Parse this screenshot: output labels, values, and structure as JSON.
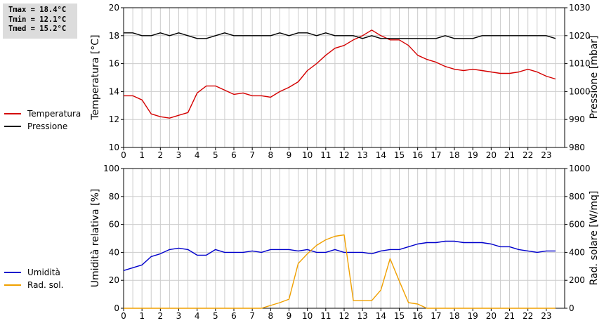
{
  "stats": {
    "tmax": "Tmax = 18.4°C",
    "tmin": "Tmin = 12.1°C",
    "tmed": "Tmed = 15.2°C"
  },
  "colors": {
    "temperature": "#d40000",
    "pressure": "#000000",
    "humidity": "#0000cc",
    "radiation": "#f0a000",
    "grid": "#cccccc"
  },
  "legend_top": {
    "temperature": "Temperatura",
    "pressure": "Pressione"
  },
  "legend_bottom": {
    "humidity": "Umidità",
    "radiation": "Rad. sol."
  },
  "chart_data": [
    {
      "type": "line",
      "ylabel": "Temperatura [°C]",
      "y2label": "Pressione [mbar]",
      "xlim": [
        0,
        24
      ],
      "ylim": [
        10,
        20
      ],
      "y2lim": [
        980,
        1030
      ],
      "x_ticks": [
        "0",
        "1",
        "2",
        "3",
        "4",
        "5",
        "6",
        "7",
        "8",
        "9",
        "10",
        "11",
        "12",
        "13",
        "14",
        "15",
        "16",
        "17",
        "18",
        "19",
        "20",
        "21",
        "22",
        "23"
      ],
      "y_ticks": [
        "10",
        "12",
        "14",
        "16",
        "18",
        "20"
      ],
      "y2_ticks": [
        "980",
        "990",
        "1000",
        "1010",
        "1020",
        "1030"
      ],
      "grid": true,
      "series": [
        {
          "name": "Temperatura",
          "axis": "left",
          "x": [
            0,
            0.5,
            1,
            1.5,
            2,
            2.5,
            3,
            3.5,
            4,
            4.5,
            5,
            5.5,
            6,
            6.5,
            7,
            7.5,
            8,
            8.5,
            9,
            9.5,
            10,
            10.5,
            11,
            11.5,
            12,
            12.5,
            13,
            13.5,
            14,
            14.5,
            15,
            15.5,
            16,
            16.5,
            17,
            17.5,
            18,
            18.5,
            19,
            19.5,
            20,
            20.5,
            21,
            21.5,
            22,
            22.5,
            23,
            23.5
          ],
          "values": [
            13.7,
            13.7,
            13.4,
            12.4,
            12.2,
            12.1,
            12.3,
            12.5,
            13.9,
            14.4,
            14.4,
            14.1,
            13.8,
            13.9,
            13.7,
            13.7,
            13.6,
            14.0,
            14.3,
            14.7,
            15.5,
            16.0,
            16.6,
            17.1,
            17.3,
            17.7,
            18.0,
            18.4,
            18.0,
            17.7,
            17.7,
            17.3,
            16.6,
            16.3,
            16.1,
            15.8,
            15.6,
            15.5,
            15.6,
            15.5,
            15.4,
            15.3,
            15.3,
            15.4,
            15.6,
            15.4,
            15.1,
            14.9
          ]
        },
        {
          "name": "Pressione",
          "axis": "right",
          "x": [
            0,
            0.5,
            1,
            1.5,
            2,
            2.5,
            3,
            3.5,
            4,
            4.5,
            5,
            5.5,
            6,
            6.5,
            7,
            7.5,
            8,
            8.5,
            9,
            9.5,
            10,
            10.5,
            11,
            11.5,
            12,
            12.5,
            13,
            13.5,
            14,
            14.5,
            15,
            15.5,
            16,
            16.5,
            17,
            17.5,
            18,
            18.5,
            19,
            19.5,
            20,
            20.5,
            21,
            21.5,
            22,
            22.5,
            23,
            23.5
          ],
          "values": [
            1021,
            1021,
            1020,
            1020,
            1021,
            1020,
            1021,
            1020,
            1019,
            1019,
            1020,
            1021,
            1020,
            1020,
            1020,
            1020,
            1020,
            1021,
            1020,
            1021,
            1021,
            1020,
            1021,
            1020,
            1020,
            1020,
            1019,
            1020,
            1019,
            1019,
            1019,
            1019,
            1019,
            1019,
            1019,
            1020,
            1019,
            1019,
            1019,
            1020,
            1020,
            1020,
            1020,
            1020,
            1020,
            1020,
            1020,
            1019
          ]
        }
      ]
    },
    {
      "type": "line",
      "ylabel": "Umidità relativa [%]",
      "y2label": "Rad. solare [W/mq]",
      "xlim": [
        0,
        24
      ],
      "ylim": [
        0,
        100
      ],
      "y2lim": [
        0,
        1000
      ],
      "x_ticks": [
        "0",
        "1",
        "2",
        "3",
        "4",
        "5",
        "6",
        "7",
        "8",
        "9",
        "10",
        "11",
        "12",
        "13",
        "14",
        "15",
        "16",
        "17",
        "18",
        "19",
        "20",
        "21",
        "22",
        "23"
      ],
      "y_ticks": [
        "0",
        "20",
        "40",
        "60",
        "80",
        "100"
      ],
      "y2_ticks": [
        "0",
        "200",
        "400",
        "600",
        "800",
        "1000"
      ],
      "grid": true,
      "series": [
        {
          "name": "Umidità",
          "axis": "left",
          "x": [
            0,
            0.5,
            1,
            1.5,
            2,
            2.5,
            3,
            3.5,
            4,
            4.5,
            5,
            5.5,
            6,
            6.5,
            7,
            7.5,
            8,
            8.5,
            9,
            9.5,
            10,
            10.5,
            11,
            11.5,
            12,
            12.5,
            13,
            13.5,
            14,
            14.5,
            15,
            15.5,
            16,
            16.5,
            17,
            17.5,
            18,
            18.5,
            19,
            19.5,
            20,
            20.5,
            21,
            21.5,
            22,
            22.5,
            23,
            23.5
          ],
          "values": [
            27,
            29,
            31,
            37,
            39,
            42,
            43,
            42,
            38,
            38,
            42,
            40,
            40,
            40,
            41,
            40,
            42,
            42,
            42,
            41,
            42,
            40,
            40,
            42,
            40,
            40,
            40,
            39,
            41,
            42,
            42,
            44,
            46,
            47,
            47,
            48,
            48,
            47,
            47,
            47,
            46,
            44,
            44,
            42,
            41,
            40,
            41,
            41
          ]
        },
        {
          "name": "Rad. sol.",
          "axis": "right",
          "x": [
            0,
            0.5,
            1,
            1.5,
            2,
            2.5,
            3,
            3.5,
            4,
            4.5,
            5,
            5.5,
            6,
            6.5,
            7,
            7.5,
            8,
            8.5,
            9,
            9.5,
            10,
            10.5,
            11,
            11.5,
            12,
            12.5,
            13,
            13.5,
            14,
            14.5,
            15,
            15.5,
            16,
            16.5,
            17,
            17.5,
            18,
            18.5,
            19,
            19.5,
            20,
            20.5,
            21,
            21.5,
            22,
            22.5,
            23,
            23.5
          ],
          "values": [
            0,
            0,
            0,
            0,
            0,
            0,
            0,
            0,
            0,
            0,
            0,
            0,
            0,
            0,
            0,
            0,
            20,
            40,
            65,
            320,
            390,
            450,
            490,
            515,
            525,
            55,
            55,
            55,
            130,
            355,
            195,
            40,
            30,
            0,
            0,
            0,
            0,
            0,
            0,
            0,
            0,
            0,
            0,
            0,
            0,
            0,
            0,
            0
          ]
        }
      ]
    }
  ]
}
